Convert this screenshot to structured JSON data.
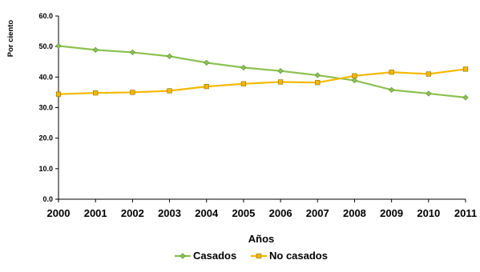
{
  "chart_data": {
    "type": "line",
    "title": "",
    "xlabel": "Años",
    "ylabel": "Por ciento",
    "x": [
      "2000",
      "2001",
      "2002",
      "2003",
      "2004",
      "2005",
      "2006",
      "2007",
      "2008",
      "2009",
      "2010",
      "2011"
    ],
    "ylim": [
      0,
      60
    ],
    "yticks": [
      "0.0",
      "10.0",
      "20.0",
      "30.0",
      "40.0",
      "50.0",
      "60.0"
    ],
    "grid": false,
    "legend_position": "bottom",
    "series": [
      {
        "name": "Casados",
        "color": "#8cc152",
        "marker": "diamond",
        "values": [
          50.2,
          48.9,
          48.1,
          46.8,
          44.7,
          43.1,
          42.0,
          40.6,
          38.9,
          35.8,
          34.6,
          33.3
        ]
      },
      {
        "name": "No casados",
        "color": "#f5b800",
        "marker": "square",
        "values": [
          34.4,
          34.8,
          35.0,
          35.5,
          36.9,
          37.8,
          38.4,
          38.2,
          40.4,
          41.6,
          41.0,
          42.6
        ]
      }
    ]
  }
}
